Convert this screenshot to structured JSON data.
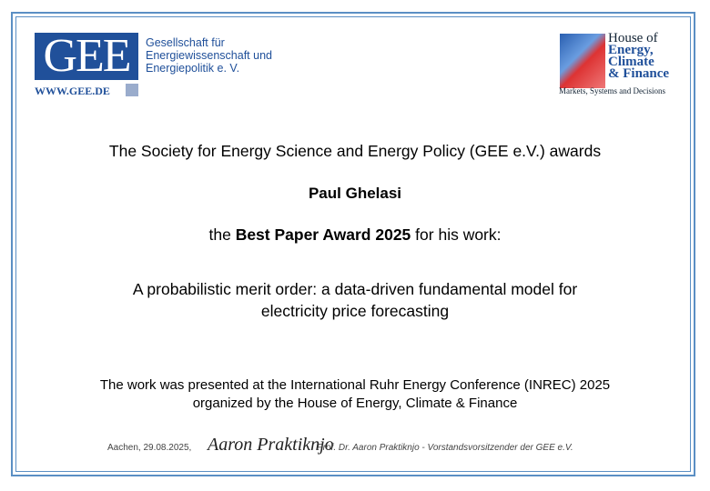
{
  "header": {
    "gee_logo": {
      "letters": "GEE",
      "url": "WWW.GEE.DE",
      "name_lines": [
        "Gesellschaft für",
        "Energiewissenschaft und",
        "Energiepolitik e. V."
      ]
    },
    "hoe_logo": {
      "lines": [
        "House of",
        "Energy,",
        "Climate",
        "& Finance"
      ],
      "tagline": "Markets, Systems and Decisions"
    }
  },
  "body": {
    "intro": "The Society for Energy Science and Energy Policy (GEE e.V.) awards",
    "recipient": "Paul Ghelasi",
    "award": {
      "before": "the",
      "name": "Best Paper Award 2025",
      "after": "for his work:"
    },
    "paper_title_lines": [
      "A probabilistic merit order: a data-driven fundamental model for",
      "electricity price forecasting"
    ],
    "presented_lines": [
      "The work was presented at the International Ruhr Energy Conference (INREC) 2025",
      "organized by the House of Energy, Climate & Finance"
    ]
  },
  "footer": {
    "place_date": "Aachen, 29.08.2025,",
    "signature": "Aaron Praktiknjo",
    "signatory": "Prof. Dr. Aaron Praktiknjo - Vorstandsvorsitzender der GEE e.V."
  }
}
